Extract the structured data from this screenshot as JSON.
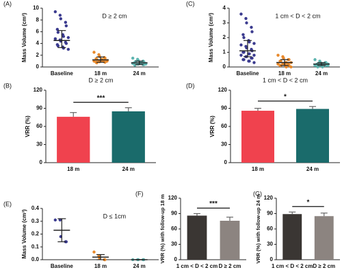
{
  "chart_data": [
    {
      "type": "dot",
      "label": "(A)",
      "annotation": "D ≥ 2 cm",
      "ylabel": "Mass Volume (cm³)",
      "categories": [
        "Baseline",
        "18 m",
        "24 m"
      ],
      "ylim": [
        0,
        10
      ],
      "yticks": [
        0,
        2,
        4,
        6,
        8,
        10
      ],
      "groups": [
        {
          "color": "#3b3b8f",
          "points": [
            9.4,
            8.8,
            8.2,
            7.6,
            7.0,
            6.4,
            5.9,
            5.5,
            5.2,
            5.0,
            4.8,
            4.6,
            4.4,
            4.2,
            4.0,
            3.8,
            3.6,
            3.4,
            3.2,
            3.0
          ],
          "mean": 4.5,
          "error_low": 3.3,
          "error_high": 6.2
        },
        {
          "color": "#e8892b",
          "points": [
            2.5,
            2.1,
            1.8,
            1.6,
            1.5,
            1.4,
            1.3,
            1.2,
            1.2,
            1.1,
            1.0,
            1.0,
            0.9,
            0.9,
            0.8,
            0.8,
            0.7,
            1.3,
            1.1,
            1.0
          ],
          "mean": 1.2,
          "error_low": 0.8,
          "error_high": 1.7
        },
        {
          "color": "#5fb5b0",
          "points": [
            1.5,
            1.3,
            1.1,
            1.0,
            0.9,
            0.8,
            0.8,
            0.7,
            0.7,
            0.6,
            0.6,
            0.5,
            0.5,
            0.4,
            0.4,
            0.3,
            0.9,
            0.7,
            0.6,
            0.5
          ],
          "mean": 0.7,
          "error_low": 0.4,
          "error_high": 1.0
        }
      ]
    },
    {
      "type": "dot",
      "label": "(C)",
      "annotation": "1 cm < D < 2 cm",
      "ylabel": "Mass Volume (cm³)",
      "categories": [
        "Baseline",
        "18 m",
        "24 m"
      ],
      "ylim": [
        0,
        4
      ],
      "yticks": [
        0,
        1,
        2,
        3,
        4
      ],
      "groups": [
        {
          "color": "#3b3b8f",
          "points": [
            3.6,
            3.3,
            3.0,
            2.7,
            2.4,
            2.2,
            2.0,
            1.8,
            1.7,
            1.6,
            1.5,
            1.4,
            1.3,
            1.2,
            1.1,
            1.0,
            1.0,
            0.9,
            0.9,
            0.8,
            0.8,
            0.7,
            0.7,
            0.6,
            0.6,
            0.5,
            0.5,
            0.4,
            0.4,
            0.3
          ],
          "mean": 1.1,
          "error_low": 0.7,
          "error_high": 1.8
        },
        {
          "color": "#e8892b",
          "points": [
            0.8,
            0.7,
            0.6,
            0.5,
            0.5,
            0.4,
            0.4,
            0.3,
            0.3,
            0.3,
            0.2,
            0.2,
            0.2,
            0.2,
            0.1,
            0.1,
            0.1,
            0.1,
            0.0,
            0.0
          ],
          "mean": 0.3,
          "error_low": 0.1,
          "error_high": 0.5
        },
        {
          "color": "#5fb5b0",
          "points": [
            0.5,
            0.4,
            0.3,
            0.3,
            0.3,
            0.2,
            0.2,
            0.2,
            0.2,
            0.2,
            0.1,
            0.1,
            0.1,
            0.1,
            0.1,
            0.1,
            0.0,
            0.0,
            0.2,
            0.1
          ],
          "mean": 0.2,
          "error_low": 0.1,
          "error_high": 0.3
        }
      ]
    },
    {
      "type": "bar",
      "label": "(B)",
      "title": "D ≥ 2 cm",
      "ylabel": "VRR (%)",
      "significance": "***",
      "categories": [
        "18 m",
        "24 m"
      ],
      "values": [
        76,
        85
      ],
      "errors": [
        7,
        6
      ],
      "colors": [
        "#f0424e",
        "#1a6b6b"
      ],
      "ylim": [
        0,
        120
      ],
      "yticks": [
        0,
        30,
        60,
        90,
        120
      ]
    },
    {
      "type": "bar",
      "label": "(D)",
      "title": "1 cm < D < 2 cm",
      "ylabel": "VRR (%)",
      "significance": "*",
      "categories": [
        "18 m",
        "24 m"
      ],
      "values": [
        86,
        89
      ],
      "errors": [
        4,
        4
      ],
      "colors": [
        "#f0424e",
        "#1a6b6b"
      ],
      "ylim": [
        0,
        120
      ],
      "yticks": [
        0,
        30,
        60,
        90,
        120
      ]
    },
    {
      "type": "dot",
      "label": "(E)",
      "annotation": "D ≤ 1cm",
      "ylabel": "Mass Volume (cm³)",
      "categories": [
        "Baseline",
        "18 m",
        "24 m"
      ],
      "ylim": [
        0,
        0.4
      ],
      "yticks": [
        {
          "value": 0,
          "label": "0.0"
        },
        0.1,
        0.2,
        0.3,
        0.4
      ],
      "groups": [
        {
          "color": "#3b3b8f",
          "points": [
            0.31,
            0.31,
            0.18,
            0.14,
            0.14
          ],
          "mean": 0.23,
          "error_low": 0.14,
          "error_high": 0.32
        },
        {
          "color": "#e8892b",
          "points": [
            0.06,
            0.03,
            0.01,
            0.0,
            0.0
          ],
          "mean": 0.02,
          "error_low": 0.0,
          "error_high": 0.04
        },
        {
          "color": "#5fb5b0",
          "points": [
            0,
            0,
            0,
            0,
            0
          ],
          "mean": 0,
          "error_low": 0,
          "error_high": 0
        }
      ]
    },
    {
      "type": "bar",
      "label": "(F)",
      "ylabel": "VRR (%) with follow-up 18 m",
      "significance": "***",
      "categories": [
        "1 cm < D < 2 cm",
        "D ≥ 2 cm"
      ],
      "values": [
        86,
        76
      ],
      "errors": [
        4,
        7
      ],
      "colors": [
        "#3a3633",
        "#8c8480"
      ],
      "ylim": [
        0,
        120
      ],
      "yticks": [
        0,
        30,
        60,
        90,
        120
      ]
    },
    {
      "type": "bar",
      "label": "(G)",
      "ylabel": "VRR (%) with follow-up 24 m",
      "significance": "*",
      "categories": [
        "1 cm < D < 2 cm",
        "D ≥ 2 cm"
      ],
      "values": [
        89,
        85
      ],
      "errors": [
        4,
        6
      ],
      "colors": [
        "#3a3633",
        "#8c8480"
      ],
      "ylim": [
        0,
        120
      ],
      "yticks": [
        0,
        30,
        60,
        90,
        120
      ]
    }
  ]
}
